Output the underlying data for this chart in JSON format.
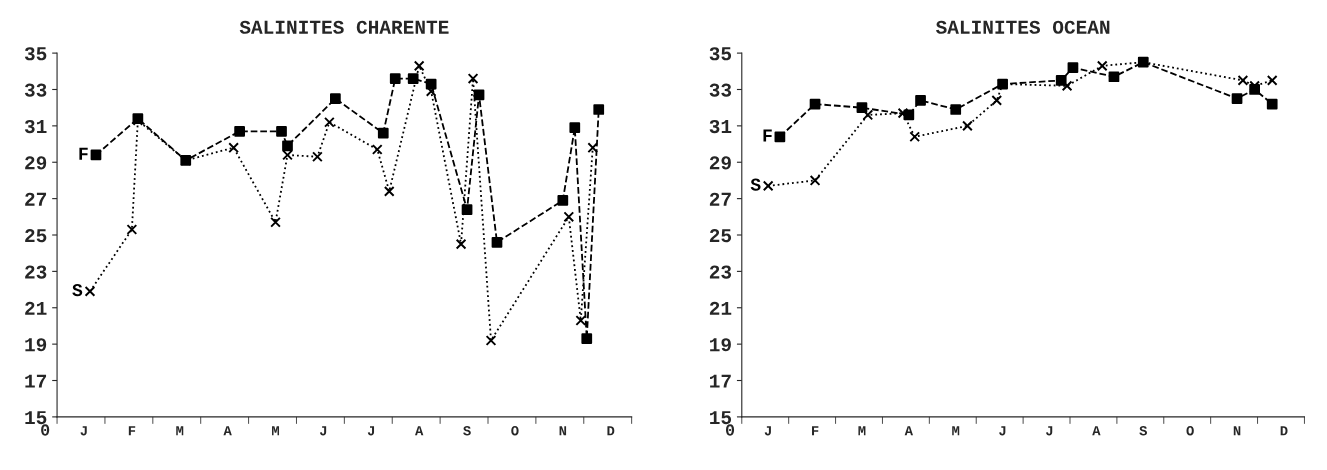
{
  "chart_data": [
    {
      "type": "line",
      "title": "SALINITES CHARENTE",
      "annotations": [
        "0"
      ],
      "ylim": [
        15,
        35
      ],
      "categories": [
        null,
        null,
        null,
        null,
        "J",
        null,
        null,
        null,
        null,
        null,
        null,
        null,
        "F",
        null,
        null,
        null,
        null,
        null,
        null,
        null,
        "M",
        null,
        null,
        null,
        null,
        null,
        null,
        null,
        "A",
        null,
        null,
        null,
        null,
        null,
        null,
        null,
        "M",
        null,
        null,
        null,
        null,
        null,
        null,
        null,
        "J",
        null,
        null,
        null,
        null,
        null,
        null,
        null,
        "J",
        null,
        null,
        null,
        null,
        null,
        null,
        null,
        "A",
        null,
        null,
        null,
        null,
        null,
        null,
        null,
        "S",
        null,
        null,
        null,
        null,
        null,
        null,
        null,
        "O",
        null,
        null,
        null,
        null,
        null,
        null,
        null,
        "N",
        null,
        null,
        null,
        null,
        null,
        null,
        null,
        "D",
        null,
        null,
        null
      ],
      "yticks": [
        15,
        17,
        19,
        21,
        23,
        25,
        27,
        29,
        31,
        33,
        35
      ],
      "grid": false,
      "legend": false,
      "series": [
        {
          "name": "F",
          "color": "#000000",
          "line_style": "dashed",
          "marker": "square",
          "values": [
            null,
            null,
            null,
            null,
            null,
            null,
            29.4,
            null,
            null,
            null,
            null,
            null,
            null,
            31.4,
            null,
            null,
            null,
            null,
            null,
            null,
            null,
            29.1,
            null,
            null,
            null,
            null,
            null,
            null,
            null,
            null,
            30.7,
            null,
            null,
            null,
            null,
            null,
            null,
            30.7,
            29.9,
            null,
            null,
            null,
            null,
            null,
            null,
            null,
            32.5,
            null,
            null,
            null,
            null,
            null,
            null,
            null,
            30.6,
            null,
            33.6,
            null,
            null,
            33.6,
            null,
            null,
            33.3,
            null,
            null,
            null,
            null,
            null,
            26.4,
            null,
            32.7,
            null,
            null,
            24.6,
            null,
            null,
            null,
            null,
            null,
            null,
            null,
            null,
            null,
            null,
            26.9,
            null,
            30.9,
            null,
            19.3,
            null,
            31.9,
            null,
            null,
            null,
            null,
            null
          ]
        },
        {
          "name": "S",
          "color": "#000000",
          "line_style": "dotted",
          "marker": "cross",
          "values": [
            null,
            null,
            null,
            null,
            null,
            21.9,
            null,
            null,
            null,
            null,
            null,
            null,
            25.3,
            31.3,
            null,
            null,
            null,
            null,
            null,
            null,
            null,
            29.1,
            null,
            null,
            null,
            null,
            null,
            null,
            null,
            29.8,
            null,
            null,
            null,
            null,
            null,
            null,
            25.7,
            null,
            29.4,
            null,
            null,
            null,
            null,
            29.3,
            null,
            31.2,
            null,
            null,
            null,
            null,
            null,
            null,
            null,
            29.7,
            null,
            27.4,
            null,
            null,
            null,
            null,
            34.3,
            null,
            32.9,
            null,
            null,
            null,
            null,
            24.5,
            null,
            33.6,
            null,
            null,
            19.2,
            null,
            null,
            null,
            null,
            null,
            null,
            null,
            null,
            null,
            null,
            null,
            null,
            26.0,
            null,
            20.3,
            null,
            29.8,
            null,
            null,
            null,
            null,
            null,
            null
          ]
        }
      ]
    },
    {
      "type": "line",
      "title": "SALINITES OCEAN",
      "annotations": [
        "0"
      ],
      "ylim": [
        15,
        35
      ],
      "categories": [
        null,
        null,
        null,
        null,
        "J",
        null,
        null,
        null,
        null,
        null,
        null,
        null,
        "F",
        null,
        null,
        null,
        null,
        null,
        null,
        null,
        "M",
        null,
        null,
        null,
        null,
        null,
        null,
        null,
        "A",
        null,
        null,
        null,
        null,
        null,
        null,
        null,
        "M",
        null,
        null,
        null,
        null,
        null,
        null,
        null,
        "J",
        null,
        null,
        null,
        null,
        null,
        null,
        null,
        "J",
        null,
        null,
        null,
        null,
        null,
        null,
        null,
        "A",
        null,
        null,
        null,
        null,
        null,
        null,
        null,
        "S",
        null,
        null,
        null,
        null,
        null,
        null,
        null,
        "O",
        null,
        null,
        null,
        null,
        null,
        null,
        null,
        "N",
        null,
        null,
        null,
        null,
        null,
        null,
        null,
        "D",
        null,
        null,
        null
      ],
      "yticks": [
        15,
        17,
        19,
        21,
        23,
        25,
        27,
        29,
        31,
        33,
        35
      ],
      "grid": false,
      "legend": false,
      "series": [
        {
          "name": "F",
          "color": "#000000",
          "line_style": "dashed",
          "marker": "square",
          "values": [
            null,
            null,
            null,
            null,
            null,
            null,
            30.4,
            null,
            null,
            null,
            null,
            null,
            32.2,
            null,
            null,
            null,
            null,
            null,
            null,
            null,
            32.0,
            null,
            null,
            null,
            null,
            null,
            null,
            null,
            31.6,
            null,
            32.4,
            null,
            null,
            null,
            null,
            null,
            31.9,
            null,
            null,
            null,
            null,
            null,
            null,
            null,
            33.3,
            null,
            null,
            null,
            null,
            null,
            null,
            null,
            null,
            null,
            33.5,
            null,
            34.2,
            null,
            null,
            null,
            null,
            null,
            null,
            33.7,
            null,
            null,
            null,
            null,
            34.5,
            null,
            null,
            null,
            null,
            null,
            null,
            null,
            null,
            null,
            null,
            null,
            null,
            null,
            null,
            null,
            32.5,
            null,
            null,
            33.0,
            null,
            null,
            32.2,
            null,
            null,
            null,
            null,
            null
          ]
        },
        {
          "name": "S",
          "color": "#000000",
          "line_style": "dotted",
          "marker": "cross",
          "values": [
            null,
            null,
            null,
            null,
            27.7,
            null,
            null,
            null,
            null,
            null,
            null,
            null,
            28.0,
            null,
            null,
            null,
            null,
            null,
            null,
            null,
            null,
            31.6,
            null,
            null,
            null,
            null,
            null,
            31.7,
            null,
            30.4,
            null,
            null,
            null,
            null,
            null,
            null,
            null,
            null,
            31.0,
            null,
            null,
            null,
            null,
            32.4,
            33.3,
            null,
            null,
            null,
            null,
            null,
            null,
            null,
            null,
            null,
            null,
            33.2,
            null,
            null,
            null,
            null,
            null,
            34.3,
            null,
            null,
            null,
            null,
            null,
            null,
            34.5,
            null,
            null,
            null,
            null,
            null,
            null,
            null,
            null,
            null,
            null,
            null,
            null,
            null,
            null,
            null,
            null,
            33.5,
            null,
            33.2,
            null,
            null,
            33.5,
            null,
            null,
            null,
            null,
            null
          ]
        }
      ]
    }
  ]
}
